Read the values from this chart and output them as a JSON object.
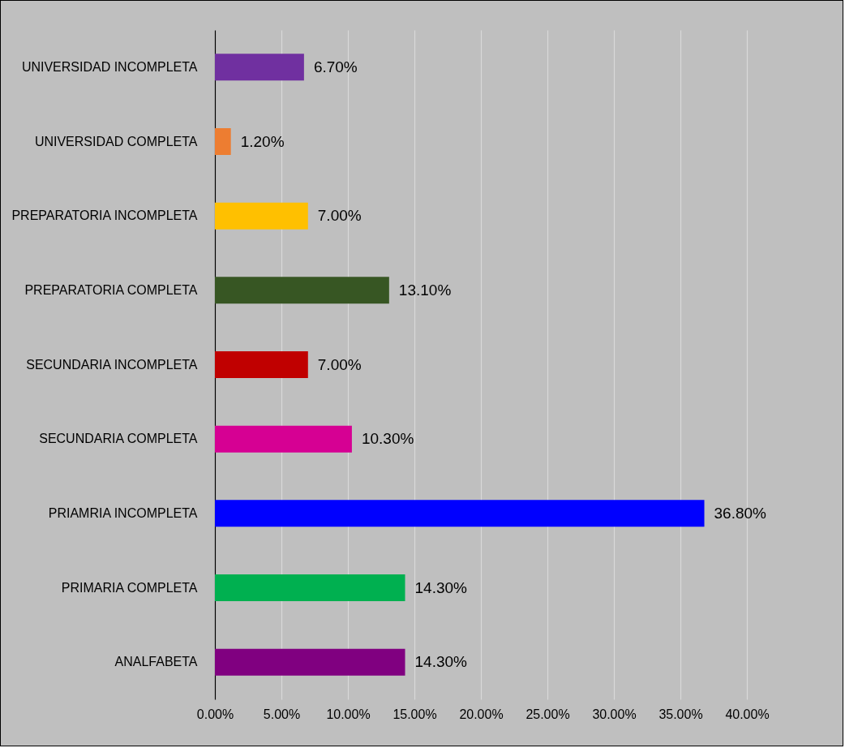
{
  "chart_data": {
    "type": "bar",
    "orientation": "horizontal",
    "categories": [
      "UNIVERSIDAD INCOMPLETA",
      "UNIVERSIDAD COMPLETA",
      "PREPARATORIA INCOMPLETA",
      "PREPARATORIA COMPLETA",
      "SECUNDARIA INCOMPLETA",
      "SECUNDARIA COMPLETA",
      "PRIAMRIA INCOMPLETA",
      "PRIMARIA COMPLETA",
      "ANALFABETA"
    ],
    "values": [
      6.7,
      1.2,
      7.0,
      13.1,
      7.0,
      10.3,
      36.8,
      14.3,
      14.3
    ],
    "value_labels": [
      "6.70%",
      "1.20%",
      "7.00%",
      "13.10%",
      "7.00%",
      "10.30%",
      "36.80%",
      "14.30%",
      "14.30%"
    ],
    "colors": [
      "#7030a0",
      "#ed7d31",
      "#ffc000",
      "#375623",
      "#c00000",
      "#d60093",
      "#0000ff",
      "#00b050",
      "#800080"
    ],
    "xlim": [
      0,
      40
    ],
    "xticks": [
      {
        "value": 0,
        "label": "0.00%"
      },
      {
        "value": 5,
        "label": "5.00%"
      },
      {
        "value": 10,
        "label": "10.00%"
      },
      {
        "value": 15,
        "label": "15.00%"
      },
      {
        "value": 20,
        "label": "20.00%"
      },
      {
        "value": 25,
        "label": "25.00%"
      },
      {
        "value": 30,
        "label": "30.00%"
      },
      {
        "value": 35,
        "label": "35.00%"
      },
      {
        "value": 40,
        "label": "40.00%"
      }
    ],
    "grid": "x"
  }
}
